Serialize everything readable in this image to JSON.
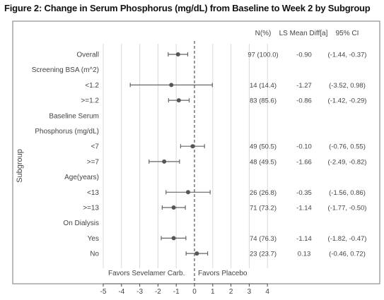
{
  "title": "Figure 2: Change in Serum Phosphorus (mg/dL) from Baseline to Week 2 by Subgroup",
  "chart_data": {
    "type": "forest",
    "title": "Figure 2: Change in Serum Phosphorus (mg/dL) from Baseline to Week 2 by Subgroup",
    "ylabel": "Subgroup",
    "xlim": [
      -5,
      4
    ],
    "xticks": [
      -5,
      -4,
      -3,
      -2,
      -1,
      0,
      1,
      2,
      3,
      4
    ],
    "reference_line": 0,
    "columns": {
      "n": "N(%)",
      "diff": "LS Mean Diff[a]",
      "ci": "95% CI"
    },
    "favors_left": "Favors Sevelamer Carb.",
    "favors_right": "Favors Placebo",
    "rows": [
      {
        "label": "Overall",
        "n": "97 (100.0)",
        "diff_text": "-0.90",
        "ci_text": "(-1.44, -0.37)",
        "est": -0.9,
        "lo": -1.44,
        "hi": -0.37
      },
      {
        "label": "Screening BSA (m^2)",
        "header": true
      },
      {
        "label": "<1.2",
        "n": "14 (14.4)",
        "diff_text": "-1.27",
        "ci_text": "(-3.52, 0.98)",
        "est": -1.27,
        "lo": -3.52,
        "hi": 0.98
      },
      {
        "label": ">=1.2",
        "n": "83 (85.6)",
        "diff_text": "-0.86",
        "ci_text": "(-1.42, -0.29)",
        "est": -0.86,
        "lo": -1.42,
        "hi": -0.29
      },
      {
        "label": "Baseline Serum",
        "header": true
      },
      {
        "label": "Phosphorus (mg/dL)",
        "header": true
      },
      {
        "label": "<7",
        "n": "49 (50.5)",
        "diff_text": "-0.10",
        "ci_text": "(-0.76, 0.55)",
        "est": -0.1,
        "lo": -0.76,
        "hi": 0.55
      },
      {
        "label": ">=7",
        "n": "48 (49.5)",
        "diff_text": "-1.66",
        "ci_text": "(-2.49, -0.82)",
        "est": -1.66,
        "lo": -2.49,
        "hi": -0.82
      },
      {
        "label": "Age(years)",
        "header": true
      },
      {
        "label": "<13",
        "n": "26 (26.8)",
        "diff_text": "-0.35",
        "ci_text": "(-1.56, 0.86)",
        "est": -0.35,
        "lo": -1.56,
        "hi": 0.86
      },
      {
        "label": ">=13",
        "n": "71 (73.2)",
        "diff_text": "-1.14",
        "ci_text": "(-1.77, -0.50)",
        "est": -1.14,
        "lo": -1.77,
        "hi": -0.5
      },
      {
        "label": "On Dialysis",
        "header": true
      },
      {
        "label": "Yes",
        "n": "74 (76.3)",
        "diff_text": "-1.14",
        "ci_text": "(-1.82, -0.47)",
        "est": -1.14,
        "lo": -1.82,
        "hi": -0.47
      },
      {
        "label": "No",
        "n": "23 (23.7)",
        "diff_text": "0.13",
        "ci_text": "(-0.46, 0.72)",
        "est": 0.13,
        "lo": -0.46,
        "hi": 0.72
      }
    ]
  }
}
